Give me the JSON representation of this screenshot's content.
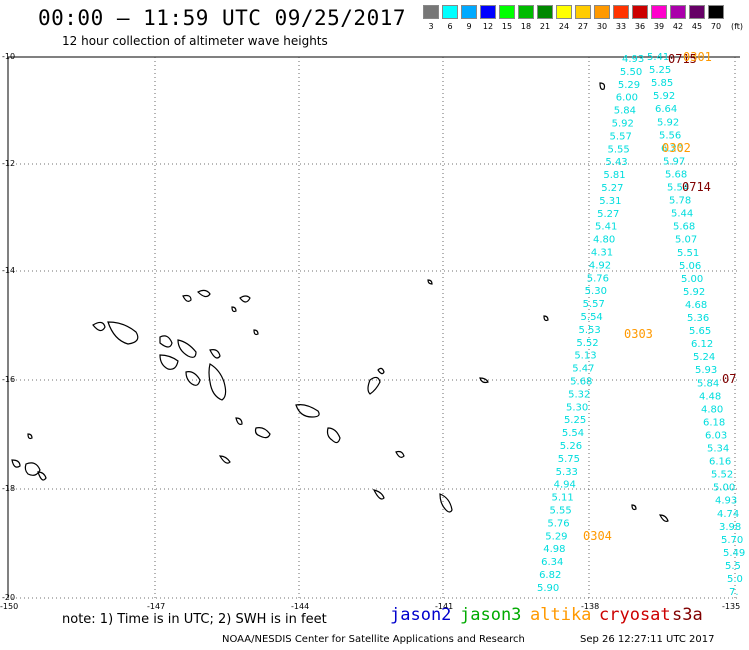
{
  "header": {
    "title": "00:00 — 11:59 UTC 09/25/2017",
    "subtitle": "12 hour collection of altimeter wave heights"
  },
  "colorbar": {
    "unit": "(ft)",
    "levels": [
      "3",
      "6",
      "9",
      "12",
      "15",
      "18",
      "21",
      "24",
      "27",
      "30",
      "33",
      "36",
      "39",
      "42",
      "45",
      "70"
    ],
    "colors": [
      "#777777",
      "#00ffff",
      "#00aaff",
      "#0000ff",
      "#00ff00",
      "#00bb00",
      "#008800",
      "#ffff00",
      "#ffcc00",
      "#ff9900",
      "#ff3300",
      "#cc0000",
      "#ff00cc",
      "#aa00aa",
      "#660066",
      "#000000"
    ]
  },
  "axes": {
    "lat_labels": [
      "-10",
      "-12",
      "-14",
      "-16",
      "-18",
      "-20"
    ],
    "lon_labels": [
      "-150",
      "-147",
      "-144",
      "-141",
      "-138",
      "-135"
    ]
  },
  "passes": [
    {
      "label": "0715",
      "color": "#800000"
    },
    {
      "label": "0301",
      "color": "#ff9900"
    },
    {
      "label": "0302",
      "color": "#ff9900"
    },
    {
      "label": "0714",
      "color": "#800000"
    },
    {
      "label": "0303",
      "color": "#ff9900"
    },
    {
      "label": "07",
      "color": "#800000"
    },
    {
      "label": "0304",
      "color": "#ff9900"
    }
  ],
  "track_left": {
    "color": "#00dddd",
    "values": [
      "4.93",
      "5.50",
      "5.29",
      "6.00",
      "5.84",
      "5.92",
      "5.57",
      "5.55",
      "5.43",
      "5.81",
      "5.27",
      "5.31",
      "5.27",
      "5.41",
      "4.80",
      "4.31",
      "4.92",
      "5.76",
      "5.30",
      "5.57",
      "5.54",
      "5.53",
      "5.52",
      "5.13",
      "5.47",
      "5.68",
      "5.32",
      "5.30",
      "5.25",
      "5.54",
      "5.26",
      "5.75",
      "5.33",
      "4.94",
      "5.11",
      "5.55",
      "5.76",
      "5.29",
      "4.98",
      "6.34",
      "6.82",
      "5.90"
    ]
  },
  "track_right": {
    "color": "#00dddd",
    "values": [
      "5.41",
      "5.25",
      "5.85",
      "5.92",
      "6.64",
      "5.92",
      "5.56",
      "6.20",
      "5.97",
      "5.68",
      "5.54",
      "5.78",
      "5.44",
      "5.68",
      "5.07",
      "5.51",
      "5.06",
      "5.00",
      "5.92",
      "4.68",
      "5.36",
      "5.65",
      "6.12",
      "5.24",
      "5.93",
      "5.84",
      "4.48",
      "4.80",
      "6.18",
      "6.03",
      "5.34",
      "6.16",
      "5.52",
      "5.00",
      "4.93",
      "4.74",
      "3.98",
      "5.70",
      "5.49",
      "5.5",
      "5.0",
      "7."
    ]
  },
  "footer": {
    "note": "note: 1) Time is in UTC; 2) SWH is in feet",
    "satellites": [
      {
        "name": "jason2",
        "color": "#0000cc"
      },
      {
        "name": "jason3",
        "color": "#00aa00"
      },
      {
        "name": "altika",
        "color": "#ff9900"
      },
      {
        "name": "cryosat",
        "color": "#cc0000"
      },
      {
        "name": "s3a",
        "color": "#800000"
      }
    ],
    "credit": "NOAA/NESDIS Center for Satellite Applications and Research",
    "timestamp": "Sep 26 12:27:11 UTC 2017"
  }
}
